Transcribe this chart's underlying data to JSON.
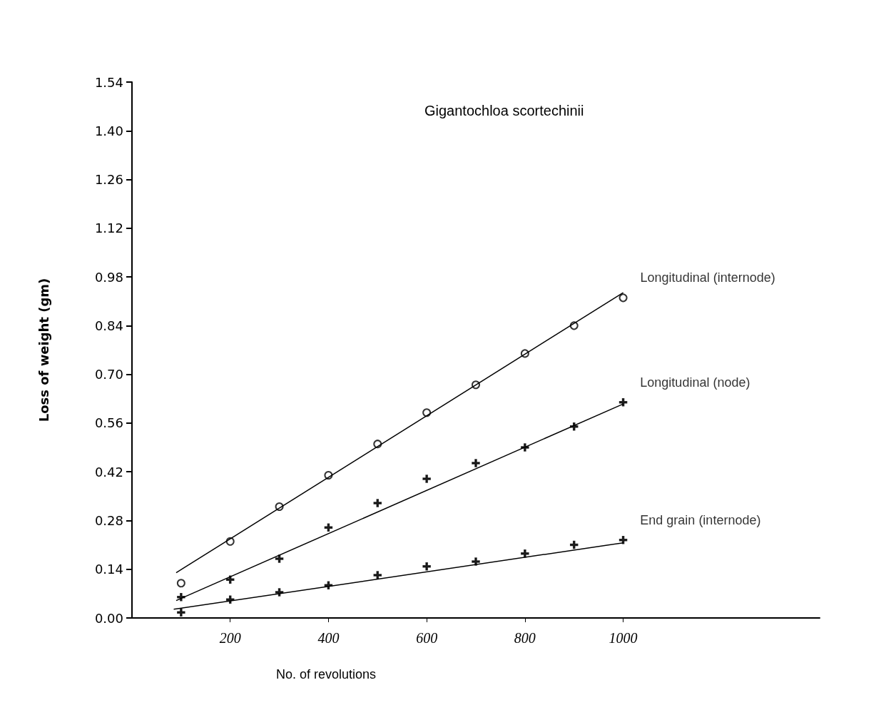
{
  "chart_data": {
    "type": "scatter",
    "title": "Gigantochloa scortechinii",
    "xlabel": "No. of revolutions",
    "ylabel": "Loss of weight (gm)",
    "xlim": [
      0,
      1400
    ],
    "xticks": [
      200,
      400,
      600,
      800,
      1000
    ],
    "ylim": [
      0,
      1.54
    ],
    "yticks": [
      {
        "value": 0,
        "label": "0.00"
      },
      {
        "value": 0.14,
        "label": "0.14"
      },
      {
        "value": 0.28,
        "label": "0.28"
      },
      {
        "value": 0.42,
        "label": "0.42"
      },
      {
        "value": 0.56,
        "label": "0.56"
      },
      {
        "value": 0.7,
        "label": "0.70"
      },
      {
        "value": 0.84,
        "label": "0.84"
      },
      {
        "value": 0.98,
        "label": "0.98"
      },
      {
        "value": 1.12,
        "label": "1.12"
      },
      {
        "value": 1.26,
        "label": "1.26"
      },
      {
        "value": 1.4,
        "label": "1.40"
      },
      {
        "value": 1.54,
        "label": "1.54"
      }
    ],
    "grid": false,
    "legend": false,
    "x": [
      100,
      200,
      300,
      400,
      500,
      600,
      700,
      800,
      900,
      1000
    ],
    "series": [
      {
        "name": "Longitudinal (internode)",
        "color": "#000000",
        "marker": "circle",
        "values": [
          0.1,
          0.22,
          0.32,
          0.41,
          0.5,
          0.59,
          0.67,
          0.76,
          0.84,
          0.92
        ]
      },
      {
        "name": "Longitudinal (node)",
        "color": "#000000",
        "marker": "cross",
        "values": [
          0.06,
          0.11,
          0.17,
          0.26,
          0.33,
          0.4,
          0.445,
          0.49,
          0.55,
          0.62
        ]
      },
      {
        "name": "End grain (internode)",
        "color": "#000000",
        "marker": "cross",
        "values": [
          0.016,
          0.053,
          0.074,
          0.094,
          0.123,
          0.148,
          0.162,
          0.185,
          0.21,
          0.224
        ]
      },
      {
        "type": "line",
        "color": "#000000",
        "marker": "none",
        "line_style": "solid",
        "x": [
          90,
          1000
        ],
        "values": [
          0.13,
          0.935
        ]
      },
      {
        "type": "line",
        "color": "#000000",
        "marker": "none",
        "line_style": "solid",
        "x": [
          90,
          1000
        ],
        "values": [
          0.05,
          0.615
        ]
      },
      {
        "type": "line",
        "color": "#000000",
        "marker": "none",
        "line_style": "solid",
        "x": [
          85,
          1000
        ],
        "values": [
          0.025,
          0.216
        ]
      }
    ]
  }
}
